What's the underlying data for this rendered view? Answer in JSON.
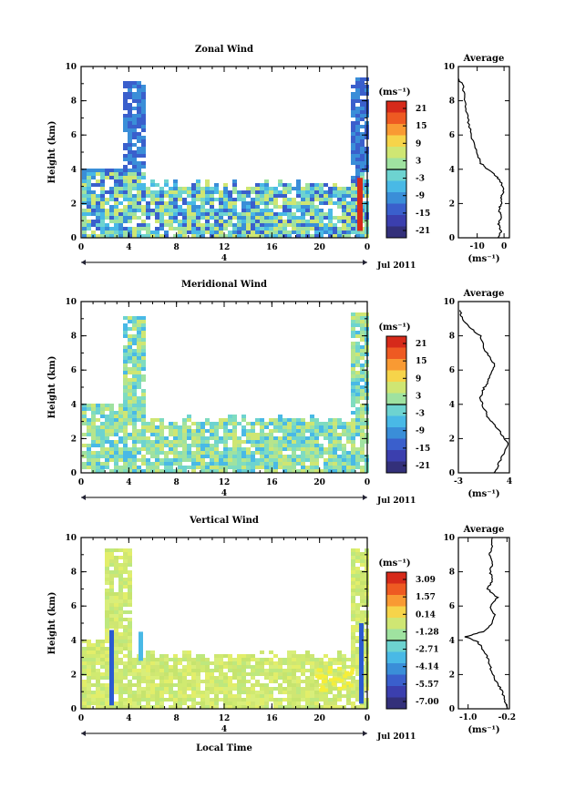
{
  "panels": [
    {
      "title": "Zonal Wind",
      "ylabel": "Height (km)",
      "unit_label": "(ms⁻¹)",
      "colorbar_ticks": [
        "21",
        "15",
        "9",
        "3",
        "-3",
        "-9",
        "-15",
        "-21"
      ],
      "avg_title": "Average",
      "avg_xticks": [
        "-10",
        "0"
      ],
      "avg_xunit": "(ms⁻¹)",
      "date_label": "Jul 2011",
      "day_label": "4",
      "profile": {
        "x_range": [
          -17,
          2
        ],
        "x_tick_values": [
          -10,
          0
        ],
        "points": [
          [
            -2,
            0
          ],
          [
            -1,
            0.4
          ],
          [
            -2,
            0.8
          ],
          [
            -1,
            1.2
          ],
          [
            -2,
            1.6
          ],
          [
            -1,
            2
          ],
          [
            -1,
            2.4
          ],
          [
            0,
            2.8
          ],
          [
            -1,
            3.2
          ],
          [
            -3,
            3.6
          ],
          [
            -6,
            4
          ],
          [
            -9,
            4.4
          ],
          [
            -10,
            5
          ],
          [
            -12,
            5.8
          ],
          [
            -13,
            6.6
          ],
          [
            -14,
            7.4
          ],
          [
            -15,
            8.2
          ],
          [
            -15,
            8.8
          ],
          [
            -17,
            9.3
          ]
        ]
      },
      "colors": {
        "low": "#3a4fc0",
        "mid": "#7cd8e8",
        "high": "#e8f07c"
      }
    },
    {
      "title": "Meridional Wind",
      "ylabel": "Height (km)",
      "unit_label": "(ms⁻¹)",
      "colorbar_ticks": [
        "21",
        "15",
        "9",
        "3",
        "-3",
        "-9",
        "-15",
        "-21"
      ],
      "avg_title": "Average",
      "avg_xticks": [
        "-3",
        "4"
      ],
      "avg_xunit": "(ms⁻¹)",
      "date_label": "Jul 2011",
      "day_label": "4",
      "profile": {
        "x_range": [
          -3,
          4
        ],
        "x_tick_values": [
          -3,
          4
        ],
        "points": [
          [
            2,
            0
          ],
          [
            2.5,
            0.5
          ],
          [
            3,
            1
          ],
          [
            3.8,
            1.7
          ],
          [
            3,
            2.2
          ],
          [
            2,
            2.8
          ],
          [
            1,
            3.3
          ],
          [
            0.5,
            3.8
          ],
          [
            0,
            4.3
          ],
          [
            0.3,
            4.8
          ],
          [
            1,
            5.3
          ],
          [
            1.5,
            5.8
          ],
          [
            2,
            6.3
          ],
          [
            1.2,
            6.8
          ],
          [
            0.5,
            7.3
          ],
          [
            0,
            8
          ],
          [
            -1.5,
            8.5
          ],
          [
            -2.5,
            9
          ],
          [
            -2.8,
            9.5
          ]
        ]
      },
      "colors": {
        "low": "#3a4fc0",
        "mid": "#7cd8e8",
        "high": "#e8f07c"
      }
    },
    {
      "title": "Vertical Wind",
      "ylabel": "Height (km)",
      "unit_label": "(ms⁻¹)",
      "colorbar_ticks": [
        "3.09",
        "1.57",
        "0.14",
        "-1.28",
        "-2.71",
        "-4.14",
        "-5.57",
        "-7.00"
      ],
      "avg_title": "Average",
      "avg_xticks": [
        "-1.0",
        "-0.2"
      ],
      "avg_xunit": "(ms⁻¹)",
      "date_label": "Jul 2011",
      "day_label": "4",
      "xlabel": "Local Time",
      "profile": {
        "x_range": [
          -1.2,
          -0.15
        ],
        "x_tick_values": [
          -1.0,
          -0.2
        ],
        "points": [
          [
            -0.2,
            0
          ],
          [
            -0.25,
            0.5
          ],
          [
            -0.3,
            1
          ],
          [
            -0.4,
            1.5
          ],
          [
            -0.5,
            2
          ],
          [
            -0.55,
            2.5
          ],
          [
            -0.6,
            3
          ],
          [
            -0.7,
            3.5
          ],
          [
            -0.8,
            3.9
          ],
          [
            -1.05,
            4.2
          ],
          [
            -0.7,
            4.5
          ],
          [
            -0.5,
            5
          ],
          [
            -0.45,
            5.5
          ],
          [
            -0.55,
            6
          ],
          [
            -0.4,
            6.5
          ],
          [
            -0.6,
            7
          ],
          [
            -0.5,
            7.5
          ],
          [
            -0.55,
            8
          ],
          [
            -0.5,
            8.5
          ],
          [
            -0.55,
            9
          ],
          [
            -0.5,
            9.5
          ],
          [
            -0.5,
            10
          ]
        ]
      },
      "colors": {
        "low": "#3a4fc0",
        "mid": "#7cd8e8",
        "high": "#e8f07c"
      }
    }
  ],
  "x_tick_labels": [
    "0",
    "4",
    "8",
    "12",
    "16",
    "20",
    "0"
  ],
  "y_tick_labels": [
    "0",
    "2",
    "4",
    "6",
    "8",
    "10"
  ],
  "chart_data": [
    {
      "type": "heatmap",
      "title": "Zonal Wind",
      "ylabel": "Height (km)",
      "ylim": [
        0,
        10
      ],
      "x_ticks": [
        "0",
        "4",
        "8",
        "12",
        "16",
        "20",
        "0"
      ],
      "colorbar": {
        "label": "(ms⁻¹)",
        "ticks": [
          21,
          15,
          9,
          3,
          -3,
          -9,
          -15,
          -21
        ]
      }
    },
    {
      "type": "line",
      "title": "Average",
      "ylim": [
        0,
        10
      ],
      "xlim": [
        -17,
        2
      ],
      "x_ticks": [
        -10,
        0
      ],
      "xlabel": "(ms⁻¹)"
    },
    {
      "type": "heatmap",
      "title": "Meridional Wind",
      "ylabel": "Height (km)",
      "ylim": [
        0,
        10
      ],
      "x_ticks": [
        "0",
        "4",
        "8",
        "12",
        "16",
        "20",
        "0"
      ],
      "colorbar": {
        "label": "(ms⁻¹)",
        "ticks": [
          21,
          15,
          9,
          3,
          -3,
          -9,
          -15,
          -21
        ]
      }
    },
    {
      "type": "line",
      "title": "Average",
      "ylim": [
        0,
        10
      ],
      "xlim": [
        -3,
        4
      ],
      "x_ticks": [
        -3,
        4
      ],
      "xlabel": "(ms⁻¹)"
    },
    {
      "type": "heatmap",
      "title": "Vertical Wind",
      "xlabel": "Local Time",
      "ylabel": "Height (km)",
      "ylim": [
        0,
        10
      ],
      "x_ticks": [
        "0",
        "4",
        "8",
        "12",
        "16",
        "20",
        "0"
      ],
      "colorbar": {
        "label": "(ms⁻¹)",
        "ticks": [
          3.09,
          1.57,
          0.14,
          -1.28,
          -2.71,
          -4.14,
          -5.57,
          -7.0
        ]
      }
    },
    {
      "type": "line",
      "title": "Average",
      "ylim": [
        0,
        10
      ],
      "xlim": [
        -1.2,
        -0.15
      ],
      "x_ticks": [
        -1.0,
        -0.2
      ],
      "xlabel": "(ms⁻¹)"
    }
  ]
}
